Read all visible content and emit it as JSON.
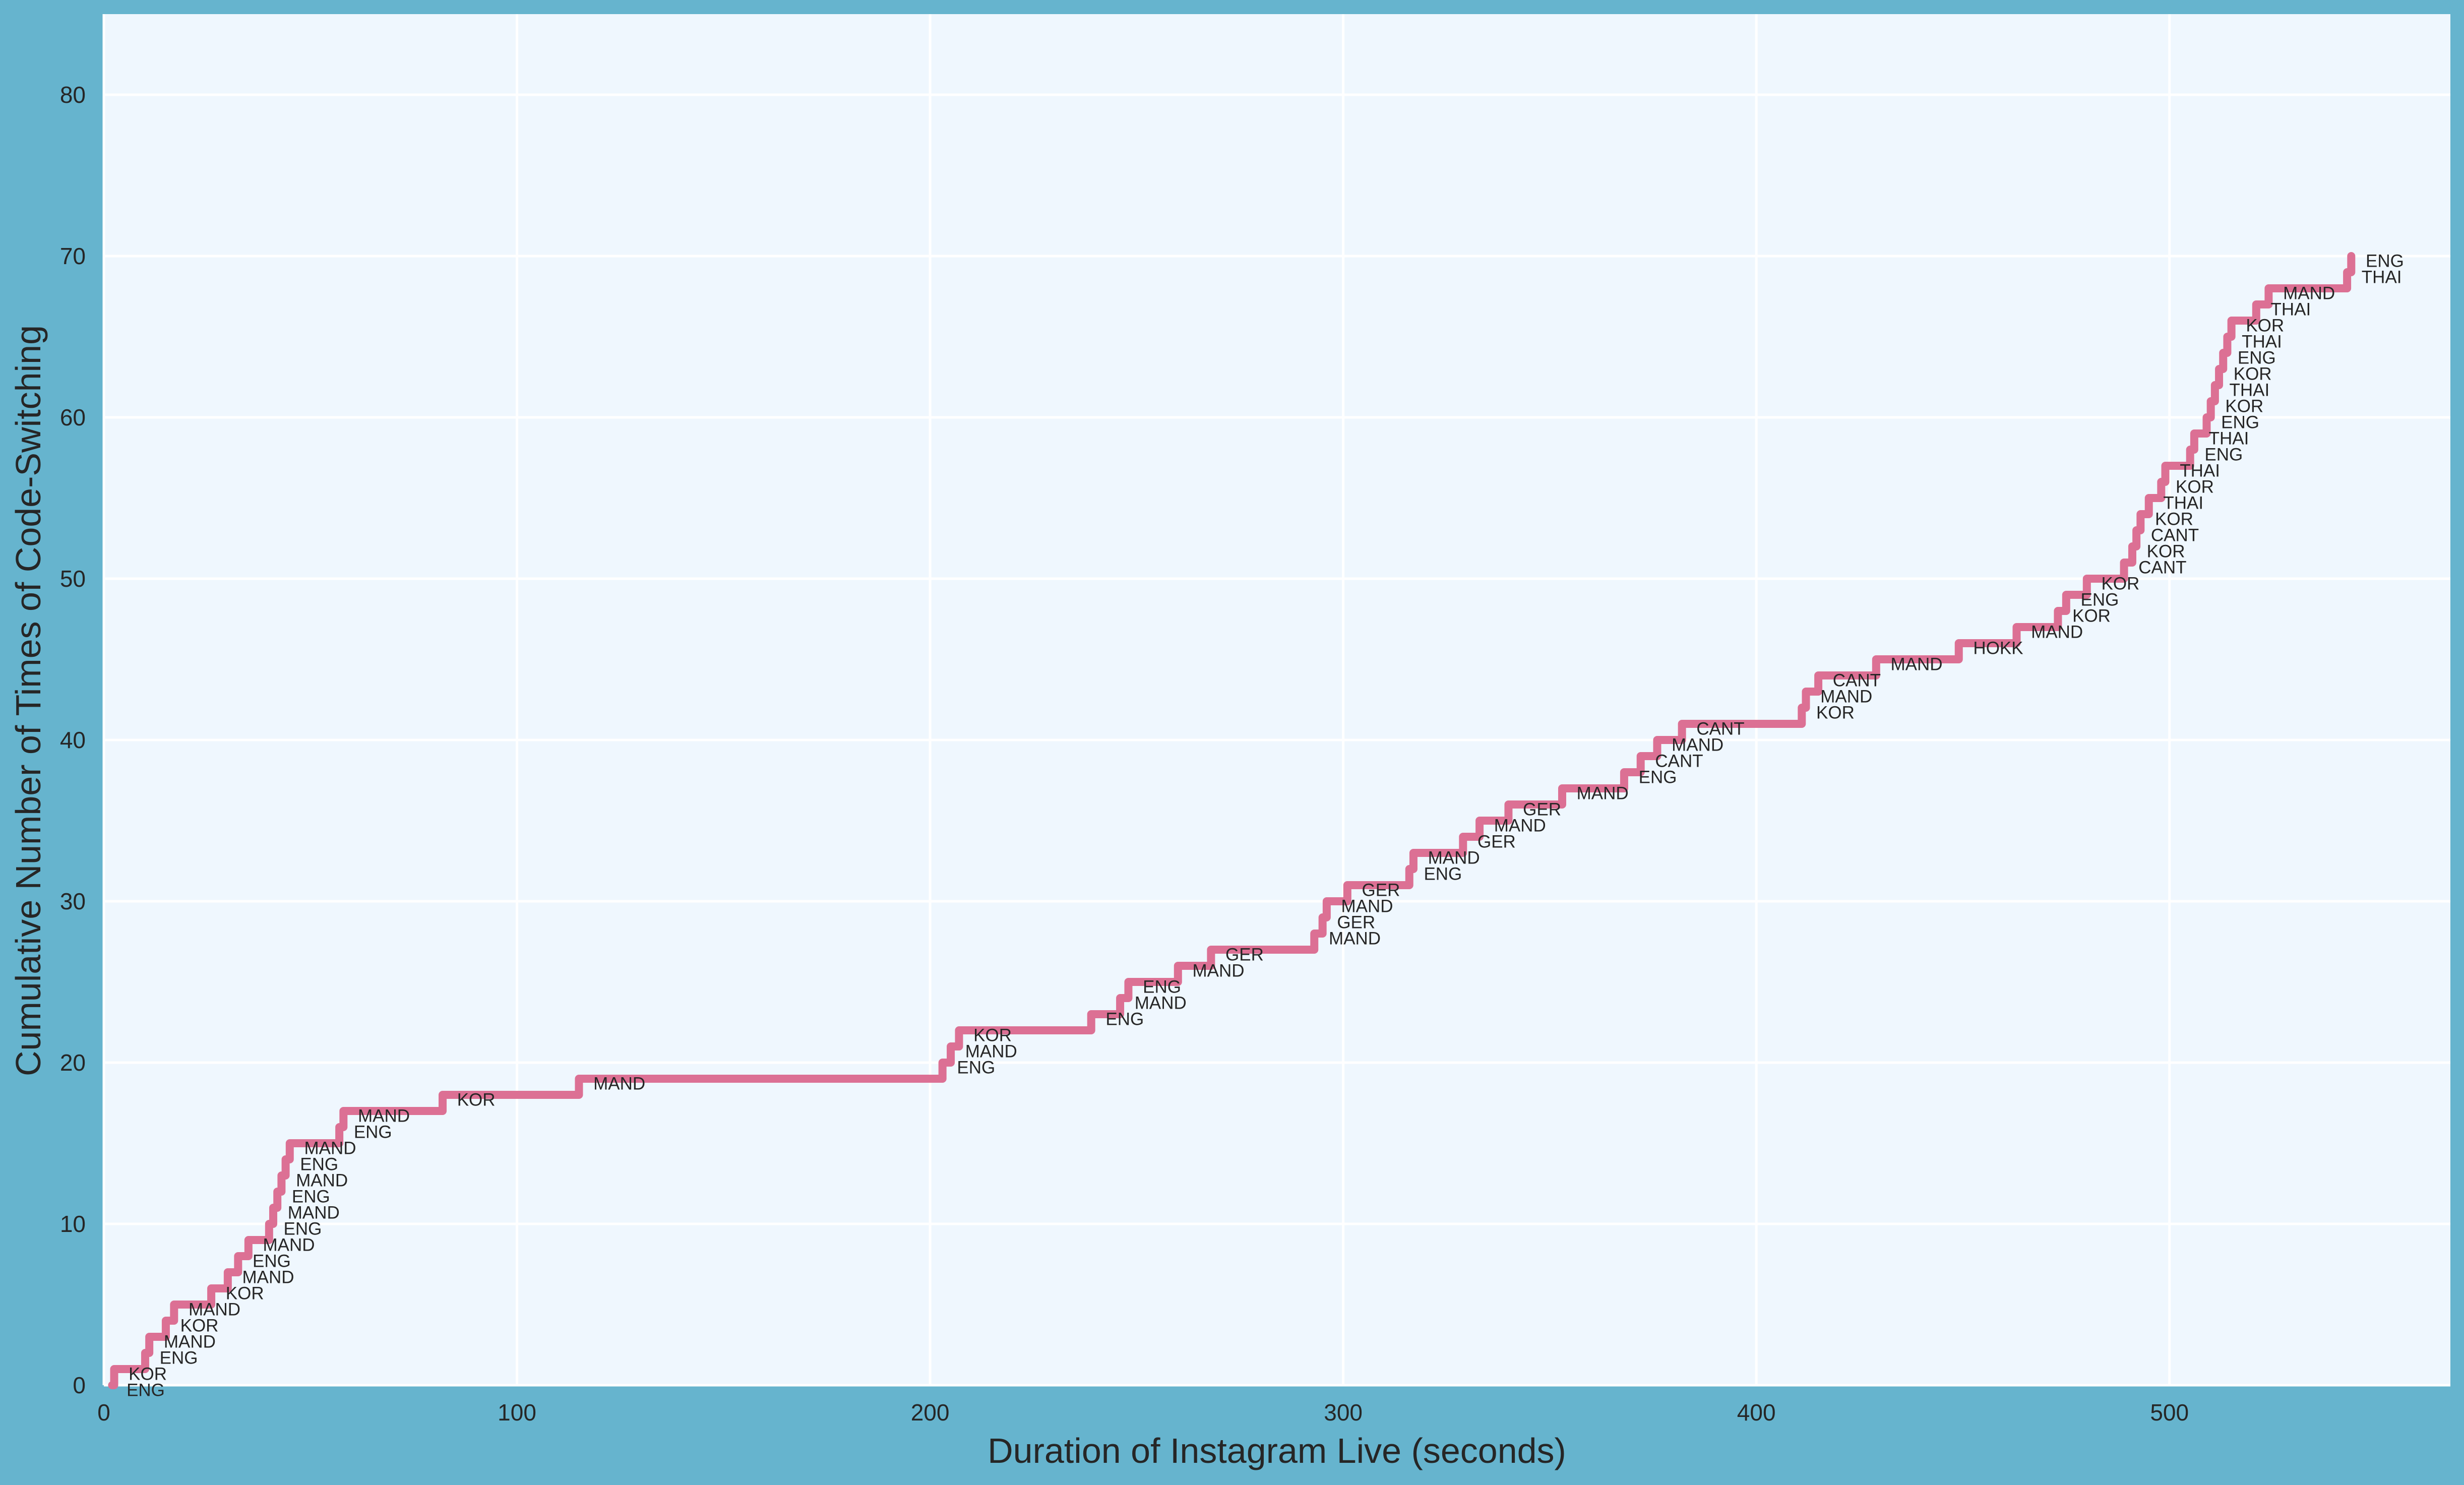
{
  "chart_data": {
    "type": "line",
    "step": "post",
    "title": "",
    "xlabel": "Duration of Instagram Live (seconds)",
    "ylabel": "Cumulative Number of Times of Code-Switching",
    "xlim": [
      0,
      568
    ],
    "ylim": [
      0,
      85
    ],
    "xticks": [
      0,
      100,
      200,
      300,
      400,
      500
    ],
    "yticks": [
      0,
      10,
      20,
      30,
      40,
      50,
      60,
      70,
      80
    ],
    "grid": true,
    "colors": {
      "line": "#dc7094",
      "plot_bg": "#eff7fe",
      "figure_bg": "#66b4ce",
      "grid": "#ffffff"
    },
    "x": [
      2,
      2.5,
      10,
      11,
      15,
      17,
      26,
      30,
      32.5,
      35,
      40,
      41,
      42,
      43,
      44,
      45,
      57,
      58,
      82,
      115,
      203,
      205,
      207,
      239,
      246,
      248,
      260,
      268,
      293,
      295,
      296,
      301,
      316,
      317,
      329,
      333,
      340,
      353,
      368,
      372,
      376,
      382,
      411,
      412,
      415,
      429,
      449,
      463,
      473,
      475,
      480,
      489,
      491,
      492,
      493,
      495,
      498,
      499,
      505,
      506,
      509,
      510,
      511,
      512,
      513,
      514,
      515,
      521,
      524,
      543,
      544
    ],
    "y": [
      0,
      1,
      2,
      3,
      4,
      5,
      6,
      7,
      8,
      9,
      10,
      11,
      12,
      13,
      14,
      15,
      16,
      17,
      18,
      19,
      20,
      21,
      22,
      23,
      24,
      25,
      26,
      27,
      28,
      29,
      30,
      31,
      32,
      33,
      34,
      35,
      36,
      37,
      38,
      39,
      40,
      41,
      42,
      43,
      44,
      45,
      46,
      47,
      48,
      49,
      50,
      51,
      52,
      53,
      54,
      55,
      56,
      57,
      58,
      59,
      60,
      61,
      62,
      63,
      64,
      65,
      66,
      67,
      68,
      69,
      70
    ],
    "point_labels": [
      "ENG",
      "KOR",
      "ENG",
      "MAND",
      "KOR",
      "MAND",
      "KOR",
      "MAND",
      "ENG",
      "MAND",
      "ENG",
      "MAND",
      "ENG",
      "MAND",
      "ENG",
      "MAND",
      "ENG",
      "MAND",
      "KOR",
      "MAND",
      "ENG",
      "MAND",
      "KOR",
      "ENG",
      "MAND",
      "ENG",
      "MAND",
      "GER",
      "MAND",
      "GER",
      "MAND",
      "GER",
      "ENG",
      "MAND",
      "GER",
      "MAND",
      "GER",
      "MAND",
      "ENG",
      "CANT",
      "MAND",
      "CANT",
      "KOR",
      "MAND",
      "CANT",
      "MAND",
      "HOKK",
      "MAND",
      "KOR",
      "ENG",
      "KOR",
      "CANT",
      "KOR",
      "CANT",
      "KOR",
      "THAI",
      "KOR",
      "THAI",
      "ENG",
      "THAI",
      "ENG",
      "KOR",
      "THAI",
      "KOR",
      "ENG",
      "THAI",
      "KOR",
      "THAI",
      "MAND",
      "THAI",
      "ENG"
    ]
  }
}
